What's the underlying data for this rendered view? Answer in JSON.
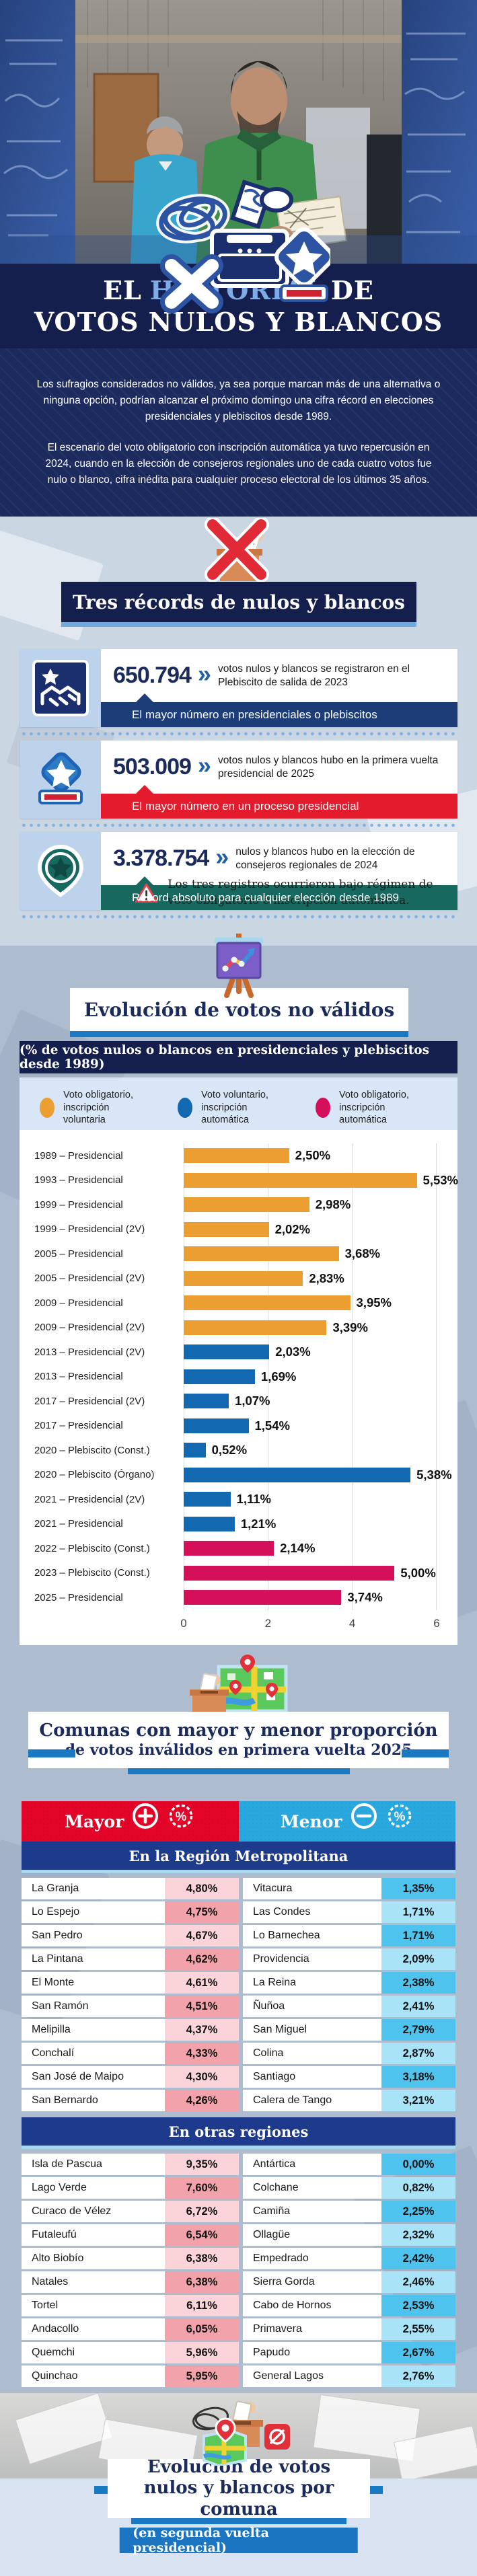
{
  "hero": {
    "image_name": "voter-holding-ballot-photo"
  },
  "title": {
    "l1a": "EL",
    "l1b": "HISTORIAL",
    "l1c": "DE",
    "l2": "VOTOS NULOS Y BLANCOS"
  },
  "intro": {
    "p1": "Los sufragios considerados no válidos, ya sea porque marcan más de una alternativa o ninguna opción, podrían alcanzar el próximo domingo una cifra récord en elecciones presidenciales y plebiscitos desde 1989.",
    "p2": "El escenario del voto obligatorio con inscripción automática ya tuvo repercusión en 2024, cuando en la elección de consejeros regionales uno de cada cuatro votos fue nulo o blanco, cifra inédita para cualquier proceso electoral de los últimos 35 años."
  },
  "records": {
    "section_title": "Tres récords de nulos y blancos",
    "cards": [
      {
        "number": "650.794",
        "desc": "votos nulos y blancos se registraron en el Plebiscito de salida de 2023",
        "banner": "El mayor número en presidenciales o plebiscitos",
        "banner_color": "#1C3D78",
        "icon": "handshake-star-icon"
      },
      {
        "number": "503.009",
        "desc": "votos nulos y blancos hubo en la primera vuelta presidencial de 2025",
        "banner": "El mayor número en un proceso presidencial",
        "banner_color": "#E31B2D",
        "icon": "ballot-box-star-icon"
      },
      {
        "number": "3.378.754",
        "desc": "nulos y blancos hubo en la elección de consejeros regionales de 2024",
        "banner": "Récord absoluto para cualquier elección desde 1989",
        "banner_color": "#17695F",
        "icon": "map-pin-star-icon"
      }
    ],
    "warning": "Los tres registros ocurrieron bajo régimen de voto obligatorio e inscripción automática."
  },
  "chart": {
    "title": "Evolución de votos no válidos",
    "subtitle": "(% de votos nulos o blancos en presidenciales y plebiscitos desde 1989)",
    "legend": [
      {
        "label": "Voto obligatorio, inscripción voluntaria",
        "color": "#EA9F30"
      },
      {
        "label": "Voto voluntario, inscripción automática",
        "color": "#1269B2"
      },
      {
        "label": "Voto obligatorio, inscripción automática",
        "color": "#D5105A"
      }
    ],
    "chart_data": {
      "type": "bar",
      "orientation": "horizontal",
      "xlim": [
        0,
        6
      ],
      "xticks": [
        0,
        2,
        4,
        6
      ],
      "grid": true,
      "legend_position": "top",
      "rows": [
        {
          "label": "1989 – Presidencial",
          "value": 2.5,
          "display": "2,50%",
          "group": 0
        },
        {
          "label": "1993 – Presidencial",
          "value": 5.53,
          "display": "5,53%",
          "group": 0
        },
        {
          "label": "1999 – Presidencial",
          "value": 2.98,
          "display": "2,98%",
          "group": 0
        },
        {
          "label": "1999 – Presidencial (2V)",
          "value": 2.02,
          "display": "2,02%",
          "group": 0
        },
        {
          "label": "2005 – Presidencial",
          "value": 3.68,
          "display": "3,68%",
          "group": 0
        },
        {
          "label": "2005 – Presidencial (2V)",
          "value": 2.83,
          "display": "2,83%",
          "group": 0
        },
        {
          "label": "2009 – Presidencial",
          "value": 3.95,
          "display": "3,95%",
          "group": 0
        },
        {
          "label": "2009 – Presidencial (2V)",
          "value": 3.39,
          "display": "3,39%",
          "group": 0
        },
        {
          "label": "2013 – Presidencial (2V)",
          "value": 2.03,
          "display": "2,03%",
          "group": 1
        },
        {
          "label": "2013 – Presidencial",
          "value": 1.69,
          "display": "1,69%",
          "group": 1
        },
        {
          "label": "2017 – Presidencial (2V)",
          "value": 1.07,
          "display": "1,07%",
          "group": 1
        },
        {
          "label": "2017 – Presidencial",
          "value": 1.54,
          "display": "1,54%",
          "group": 1
        },
        {
          "label": "2020 – Plebiscito (Const.)",
          "value": 0.52,
          "display": "0,52%",
          "group": 1
        },
        {
          "label": "2020 – Plebiscito (Órgano)",
          "value": 5.38,
          "display": "5,38%",
          "group": 1
        },
        {
          "label": "2021 – Presidencial (2V)",
          "value": 1.11,
          "display": "1,11%",
          "group": 1
        },
        {
          "label": "2021 – Presidencial",
          "value": 1.21,
          "display": "1,21%",
          "group": 1
        },
        {
          "label": "2022 – Plebiscito (Const.)",
          "value": 2.14,
          "display": "2,14%",
          "group": 2
        },
        {
          "label": "2023 – Plebiscito (Const.)",
          "value": 5.0,
          "display": "5,00%",
          "group": 2
        },
        {
          "label": "2025 – Presidencial",
          "value": 3.74,
          "display": "3,74%",
          "group": 2
        }
      ]
    }
  },
  "comunas": {
    "title_line1": "Comunas con mayor y menor proporción",
    "title_line2": "de votos inválidos en primera vuelta 2025",
    "mayor_label": "Mayor",
    "menor_label": "Menor",
    "table": {
      "sections": [
        {
          "title": "En la Región Metropolitana",
          "rows": [
            {
              "mayor": "La Granja",
              "mayor_value": "4,80%",
              "menor": "Vitacura",
              "menor_value": "1,35%"
            },
            {
              "mayor": "Lo Espejo",
              "mayor_value": "4,75%",
              "menor": "Las Condes",
              "menor_value": "1,71%"
            },
            {
              "mayor": "San Pedro",
              "mayor_value": "4,67%",
              "menor": "Lo Barnechea",
              "menor_value": "1,71%"
            },
            {
              "mayor": "La Pintana",
              "mayor_value": "4,62%",
              "menor": "Providencia",
              "menor_value": "2,09%"
            },
            {
              "mayor": "El Monte",
              "mayor_value": "4,61%",
              "menor": "La Reina",
              "menor_value": "2,38%"
            },
            {
              "mayor": "San Ramón",
              "mayor_value": "4,51%",
              "menor": "Ñuñoa",
              "menor_value": "2,41%"
            },
            {
              "mayor": "Melipilla",
              "mayor_value": "4,37%",
              "menor": "San Miguel",
              "menor_value": "2,79%"
            },
            {
              "mayor": "Conchalí",
              "mayor_value": "4,33%",
              "menor": "Colina",
              "menor_value": "2,87%"
            },
            {
              "mayor": "San José de Maipo",
              "mayor_value": "4,30%",
              "menor": "Santiago",
              "menor_value": "3,18%"
            },
            {
              "mayor": "San Bernardo",
              "mayor_value": "4,26%",
              "menor": "Calera de Tango",
              "menor_value": "3,21%"
            }
          ]
        },
        {
          "title": "En otras regiones",
          "rows": [
            {
              "mayor": "Isla de Pascua",
              "mayor_value": "9,35%",
              "menor": "Antártica",
              "menor_value": "0,00%"
            },
            {
              "mayor": "Lago Verde",
              "mayor_value": "7,60%",
              "menor": "Colchane",
              "menor_value": "0,82%"
            },
            {
              "mayor": "Curaco de Vélez",
              "mayor_value": "6,72%",
              "menor": "Camiña",
              "menor_value": "2,25%"
            },
            {
              "mayor": "Futaleufú",
              "mayor_value": "6,54%",
              "menor": "Ollagüe",
              "menor_value": "2,32%"
            },
            {
              "mayor": "Alto Biobío",
              "mayor_value": "6,38%",
              "menor": "Empedrado",
              "menor_value": "2,42%"
            },
            {
              "mayor": "Natales",
              "mayor_value": "6,38%",
              "menor": "Sierra Gorda",
              "menor_value": "2,46%"
            },
            {
              "mayor": "Tortel",
              "mayor_value": "6,11%",
              "menor": "Cabo de Hornos",
              "menor_value": "2,53%"
            },
            {
              "mayor": "Andacollo",
              "mayor_value": "6,05%",
              "menor": "Primavera",
              "menor_value": "2,55%"
            },
            {
              "mayor": "Quemchi",
              "mayor_value": "5,96%",
              "menor": "Papudo",
              "menor_value": "2,67%"
            },
            {
              "mayor": "Quinchao",
              "mayor_value": "5,95%",
              "menor": "General Lagos",
              "menor_value": "2,76%"
            }
          ]
        }
      ]
    }
  },
  "bottom": {
    "title": "Evolución de votos nulos y blancos por comuna",
    "button": "(en segunda vuelta presidencial)"
  },
  "icons": {
    "hero_logo": "ballot-scribble-logo-icon",
    "records_header": "crossed-ballot-box-icon",
    "card_icons": [
      "handshake-star-icon",
      "ballot-box-star-icon",
      "map-pin-star-icon"
    ],
    "warning": "warning-triangle-icon",
    "chart_header": "easel-chart-icon",
    "comunas_header": "map-ballot-box-icon",
    "bottom_header": "null-vote-map-icon",
    "mayor_icons": [
      "plus-circle-icon",
      "percent-badge-icon"
    ],
    "menor_icons": [
      "minus-circle-icon",
      "percent-badge-icon"
    ]
  },
  "colors": {
    "navy": "#151F4D",
    "navy_text": "#1B2B5C",
    "intro_bg": "#1C2A5E",
    "records_bg": "#CBD6E3",
    "section_bg": "#AEBCD0",
    "legend_bg": "#D9E6F7",
    "banner_navy": "#1C3D78",
    "banner_red": "#E31B2D",
    "banner_teal": "#17695F",
    "accent_blue": "#1B79C4",
    "underline_light": "#6FAADF",
    "highlight_blue": "#7FABE8",
    "orange": "#EA9F30",
    "bar_blue": "#1269B2",
    "bar_crimson": "#D5105A",
    "mayor_red": "#E40428",
    "menor_cyan": "#29A8E0",
    "region_band": "#1D3A8C",
    "pink_light": "#FBD4D9",
    "pink_dark": "#F2A2AB",
    "cyan_light": "#A9E3F8",
    "cyan_dark": "#4EC3EE"
  }
}
